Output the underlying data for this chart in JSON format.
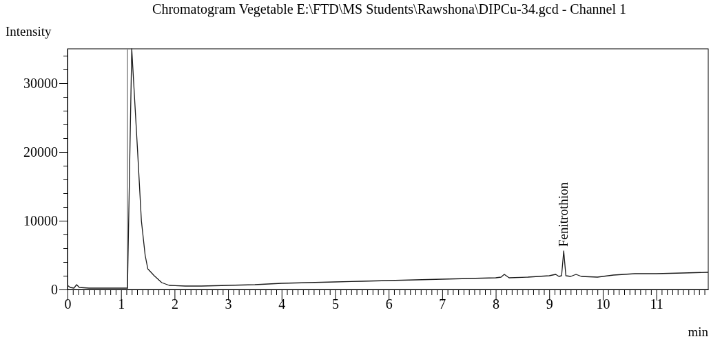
{
  "chart_data": {
    "type": "line",
    "title": "Chromatogram Vegetable E:\\FTD\\MS Students\\Rawshona\\DIPCu-34.gcd - Channel 1",
    "xlabel": "min",
    "ylabel": "Intensity",
    "series": [
      {
        "color": "#1a1a1a",
        "x": [
          0,
          0.05,
          0.12,
          0.17,
          0.22,
          0.4,
          0.7,
          1.0,
          1.1,
          1.12,
          1.2,
          1.31,
          1.38,
          1.45,
          1.5,
          1.62,
          1.76,
          1.9,
          2.2,
          2.5,
          3,
          3.5,
          4,
          4.5,
          5,
          5.5,
          6,
          6.5,
          7,
          7.5,
          8,
          8.1,
          8.16,
          8.25,
          8.6,
          9,
          9.12,
          9.18,
          9.23,
          9.27,
          9.31,
          9.4,
          9.5,
          9.6,
          9.9,
          10.2,
          10.6,
          11,
          11.5,
          11.97
        ],
        "values": [
          600,
          300,
          200,
          700,
          300,
          200,
          200,
          200,
          200,
          200,
          35000,
          20000,
          10000,
          5000,
          3000,
          2000,
          1000,
          600,
          500,
          500,
          600,
          700,
          900,
          1000,
          1100,
          1200,
          1300,
          1400,
          1500,
          1600,
          1700,
          1800,
          2200,
          1700,
          1800,
          2000,
          2200,
          1900,
          2000,
          5600,
          2000,
          1900,
          2200,
          1900,
          1800,
          2100,
          2300,
          2300,
          2400,
          2500
        ]
      }
    ],
    "xlim": [
      0,
      11.97
    ],
    "ylim": [
      0,
      35000
    ],
    "xticks": [
      0,
      1,
      2,
      3,
      4,
      5,
      6,
      7,
      8,
      9,
      10,
      11,
      {
        "value": 0.1,
        "label": null
      },
      {
        "value": 0.2,
        "label": null
      },
      {
        "value": 0.3,
        "label": null
      },
      {
        "value": 0.4,
        "label": null
      },
      {
        "value": 0.5,
        "label": null
      },
      {
        "value": 0.6,
        "label": null
      },
      {
        "value": 0.7,
        "label": null
      },
      {
        "value": 0.8,
        "label": null
      },
      {
        "value": 0.9,
        "label": null
      },
      {
        "value": 1.1,
        "label": null
      },
      {
        "value": 1.2,
        "label": null
      },
      {
        "value": 1.3,
        "label": null
      },
      {
        "value": 1.4,
        "label": null
      },
      {
        "value": 1.5,
        "label": null
      },
      {
        "value": 1.6,
        "label": null
      },
      {
        "value": 1.7,
        "label": null
      },
      {
        "value": 1.8,
        "label": null
      },
      {
        "value": 1.9,
        "label": null
      },
      {
        "value": 2.1,
        "label": null
      },
      {
        "value": 2.2,
        "label": null
      },
      {
        "value": 2.3,
        "label": null
      },
      {
        "value": 2.4,
        "label": null
      },
      {
        "value": 2.5,
        "label": null
      },
      {
        "value": 2.6,
        "label": null
      },
      {
        "value": 2.7,
        "label": null
      },
      {
        "value": 2.8,
        "label": null
      },
      {
        "value": 2.9,
        "label": null
      },
      {
        "value": 3.1,
        "label": null
      },
      {
        "value": 3.2,
        "label": null
      },
      {
        "value": 3.3,
        "label": null
      },
      {
        "value": 3.4,
        "label": null
      },
      {
        "value": 3.5,
        "label": null
      },
      {
        "value": 3.6,
        "label": null
      },
      {
        "value": 3.7,
        "label": null
      },
      {
        "value": 3.8,
        "label": null
      },
      {
        "value": 3.9,
        "label": null
      },
      {
        "value": 4.1,
        "label": null
      },
      {
        "value": 4.2,
        "label": null
      },
      {
        "value": 4.3,
        "label": null
      },
      {
        "value": 4.4,
        "label": null
      },
      {
        "value": 4.5,
        "label": null
      },
      {
        "value": 4.6,
        "label": null
      },
      {
        "value": 4.7,
        "label": null
      },
      {
        "value": 4.8,
        "label": null
      },
      {
        "value": 4.9,
        "label": null
      },
      {
        "value": 5.1,
        "label": null
      },
      {
        "value": 5.2,
        "label": null
      },
      {
        "value": 5.3,
        "label": null
      },
      {
        "value": 5.4,
        "label": null
      },
      {
        "value": 5.5,
        "label": null
      },
      {
        "value": 5.6,
        "label": null
      },
      {
        "value": 5.7,
        "label": null
      },
      {
        "value": 5.8,
        "label": null
      },
      {
        "value": 5.9,
        "label": null
      },
      {
        "value": 6.1,
        "label": null
      },
      {
        "value": 6.2,
        "label": null
      },
      {
        "value": 6.3,
        "label": null
      },
      {
        "value": 6.4,
        "label": null
      },
      {
        "value": 6.5,
        "label": null
      },
      {
        "value": 6.6,
        "label": null
      },
      {
        "value": 6.7,
        "label": null
      },
      {
        "value": 6.8,
        "label": null
      },
      {
        "value": 6.9,
        "label": null
      },
      {
        "value": 7.1,
        "label": null
      },
      {
        "value": 7.2,
        "label": null
      },
      {
        "value": 7.3,
        "label": null
      },
      {
        "value": 7.4,
        "label": null
      },
      {
        "value": 7.5,
        "label": null
      },
      {
        "value": 7.6,
        "label": null
      },
      {
        "value": 7.7,
        "label": null
      },
      {
        "value": 7.8,
        "label": null
      },
      {
        "value": 7.9,
        "label": null
      },
      {
        "value": 8.1,
        "label": null
      },
      {
        "value": 8.2,
        "label": null
      },
      {
        "value": 8.3,
        "label": null
      },
      {
        "value": 8.4,
        "label": null
      },
      {
        "value": 8.5,
        "label": null
      },
      {
        "value": 8.6,
        "label": null
      },
      {
        "value": 8.7,
        "label": null
      },
      {
        "value": 8.8,
        "label": null
      },
      {
        "value": 8.9,
        "label": null
      },
      {
        "value": 9.1,
        "label": null
      },
      {
        "value": 9.2,
        "label": null
      },
      {
        "value": 9.3,
        "label": null
      },
      {
        "value": 9.4,
        "label": null
      },
      {
        "value": 9.5,
        "label": null
      },
      {
        "value": 9.6,
        "label": null
      },
      {
        "value": 9.7,
        "label": null
      },
      {
        "value": 9.8,
        "label": null
      },
      {
        "value": 9.9,
        "label": null
      },
      {
        "value": 10.1,
        "label": null
      },
      {
        "value": 10.2,
        "label": null
      },
      {
        "value": 10.3,
        "label": null
      },
      {
        "value": 10.4,
        "label": null
      },
      {
        "value": 10.5,
        "label": null
      },
      {
        "value": 10.6,
        "label": null
      },
      {
        "value": 10.7,
        "label": null
      },
      {
        "value": 10.8,
        "label": null
      },
      {
        "value": 10.9,
        "label": null
      },
      {
        "value": 11.1,
        "label": null
      },
      {
        "value": 11.2,
        "label": null
      },
      {
        "value": 11.3,
        "label": null
      },
      {
        "value": 11.4,
        "label": null
      },
      {
        "value": 11.5,
        "label": null
      },
      {
        "value": 11.6,
        "label": null
      },
      {
        "value": 11.7,
        "label": null
      },
      {
        "value": 11.8,
        "label": null
      },
      {
        "value": 11.9,
        "label": null
      }
    ],
    "yticks": [
      0,
      10000,
      20000,
      30000,
      {
        "value": 2000,
        "label": null
      },
      {
        "value": 4000,
        "label": null
      },
      {
        "value": 6000,
        "label": null
      },
      {
        "value": 8000,
        "label": null
      },
      {
        "value": 12000,
        "label": null
      },
      {
        "value": 14000,
        "label": null
      },
      {
        "value": 16000,
        "label": null
      },
      {
        "value": 18000,
        "label": null
      },
      {
        "value": 22000,
        "label": null
      },
      {
        "value": 24000,
        "label": null
      },
      {
        "value": 26000,
        "label": null
      },
      {
        "value": 28000,
        "label": null
      },
      {
        "value": 32000,
        "label": null
      },
      {
        "value": 34000,
        "label": null
      }
    ],
    "ref_lines": [
      {
        "axis": "x",
        "value": 1.12,
        "color": "#888888"
      }
    ],
    "annotations": [
      {
        "text": "Fenitrothion",
        "x": 9.27,
        "y": 5600
      }
    ],
    "grid": false,
    "marker": "none",
    "line_style": "solid"
  }
}
